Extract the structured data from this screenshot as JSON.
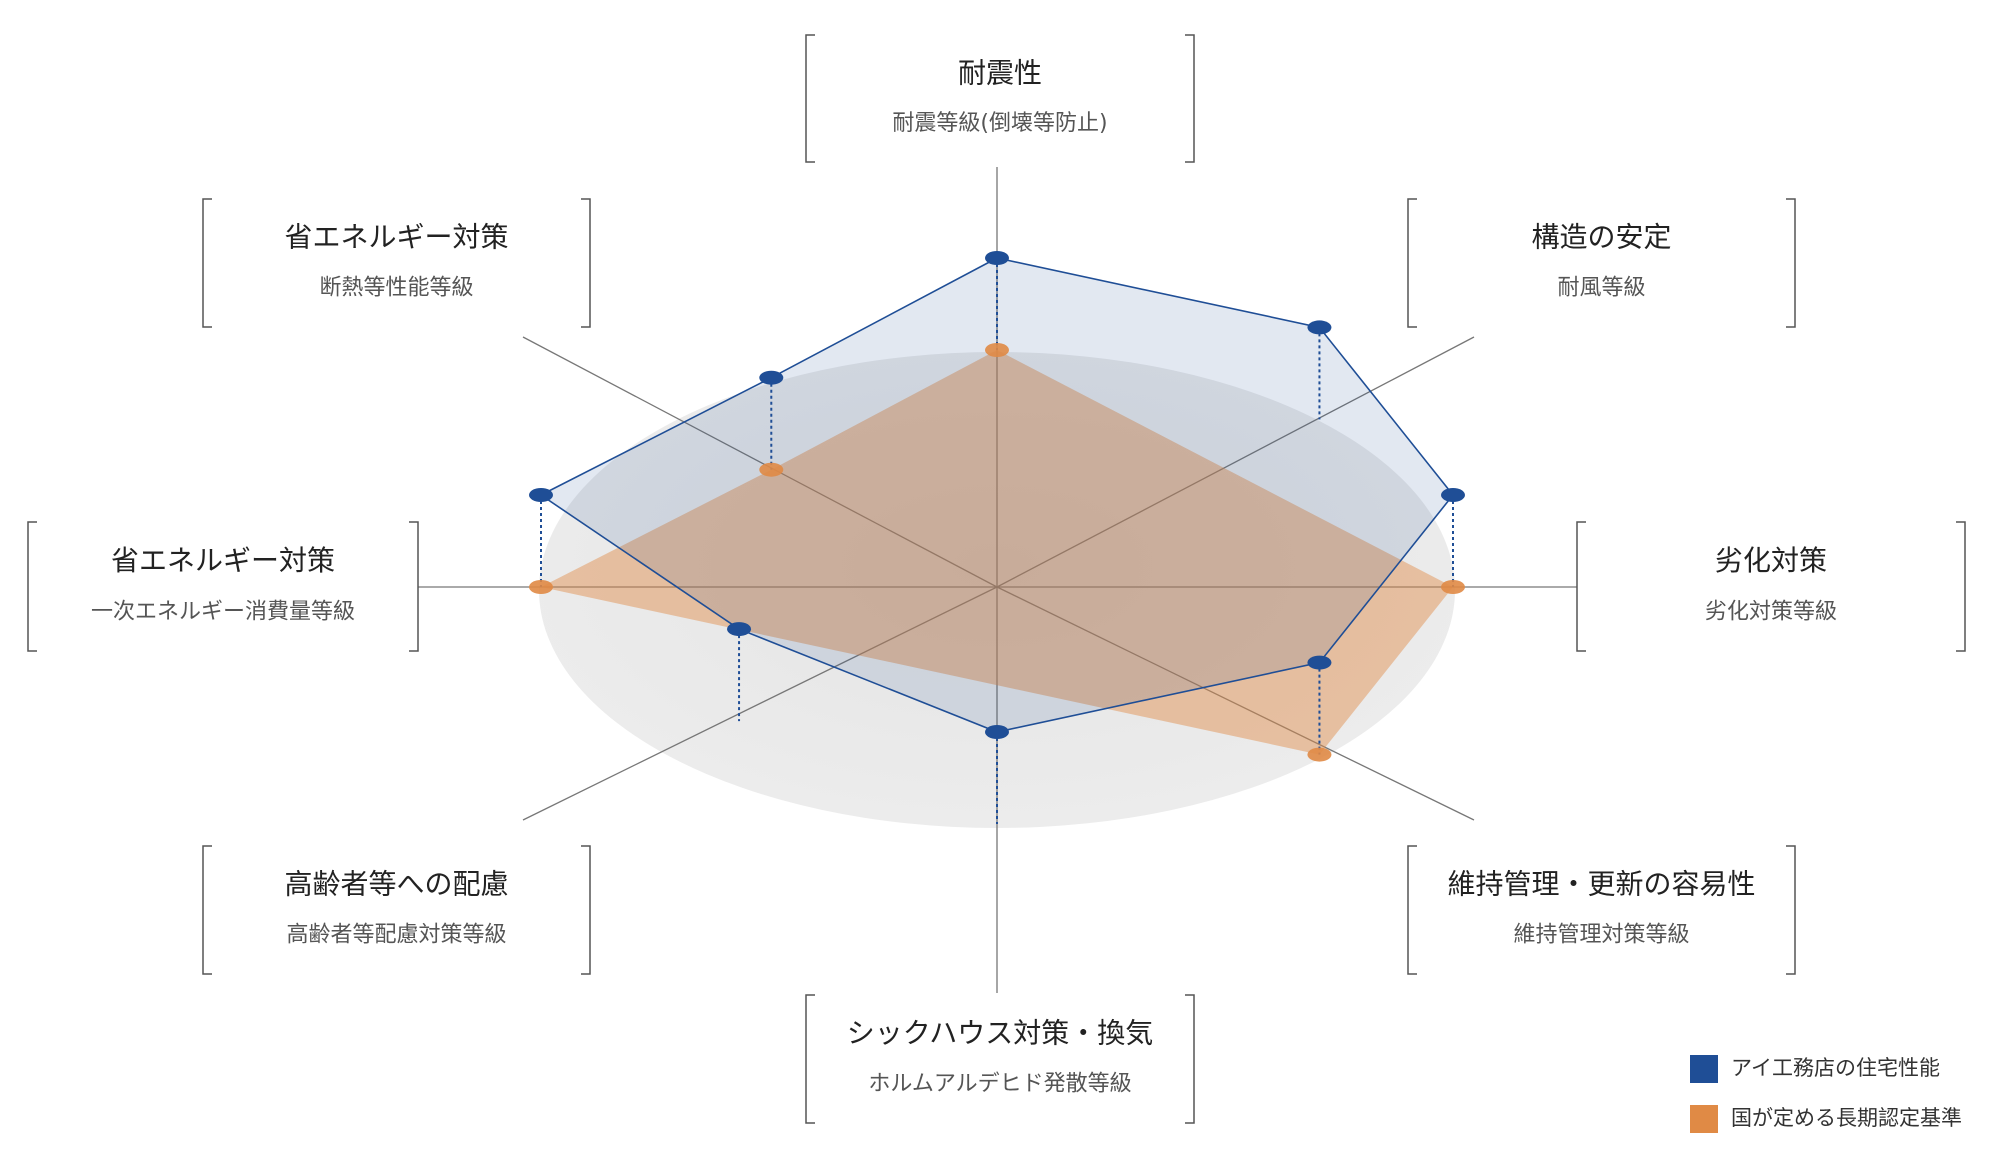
{
  "chart_data": {
    "type": "radar",
    "axes": [
      {
        "title": "耐震性",
        "subtitle": "耐震等級(倒壊等防止)"
      },
      {
        "title": "構造の安定",
        "subtitle": "耐風等級"
      },
      {
        "title": "劣化対策",
        "subtitle": "劣化対策等級"
      },
      {
        "title": "維持管理・更新の容易性",
        "subtitle": "維持管理対策等級"
      },
      {
        "title": "シックハウス対策・換気",
        "subtitle": "ホルムアルデヒド発散等級"
      },
      {
        "title": "高齢者等への配慮",
        "subtitle": "高齢者等配慮対策等級"
      },
      {
        "title": "省エネルギー対策",
        "subtitle": "一次エネルギー消費量等級"
      },
      {
        "title": "省エネルギー対策",
        "subtitle": "断熱等性能等級"
      }
    ],
    "series": [
      {
        "name": "アイ工務店の住宅性能",
        "color": "#1f4e96",
        "values": [
          1,
          1,
          1,
          1,
          1,
          0.8,
          1,
          0.7
        ]
      },
      {
        "name": "国が定める長期認定基準",
        "color": "#e08a45",
        "values": [
          1,
          null,
          1,
          1,
          null,
          null,
          1,
          0.7
        ]
      }
    ],
    "rlim": [
      0,
      1
    ]
  }
}
